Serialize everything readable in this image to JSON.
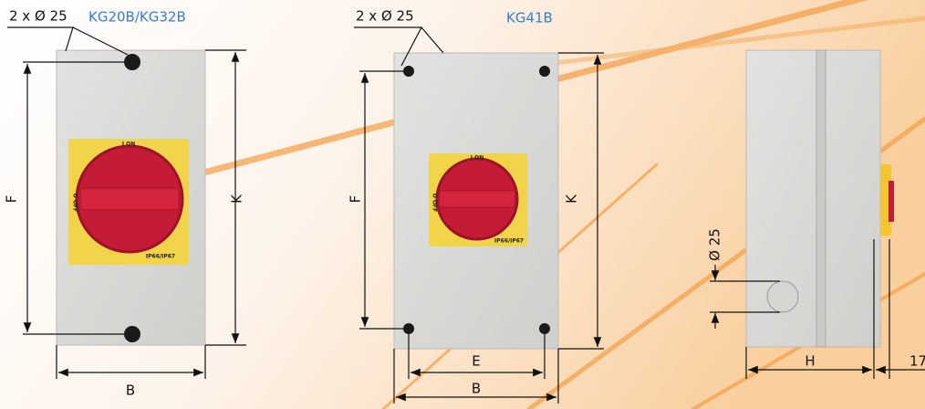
{
  "views": [
    {
      "hole_label": "2 x Ø 25",
      "model": "KG20B/KG32B",
      "height_label": "F",
      "total_height_label": "K",
      "width_label": "B",
      "switch": {
        "on": "I ON",
        "off": "O OFF",
        "rating": "IP66/IP67"
      }
    },
    {
      "hole_label": "2 x Ø 25",
      "model": "KG41B",
      "height_label": "F",
      "total_height_label": "K",
      "hole_spacing_label": "E",
      "width_label": "B",
      "switch": {
        "on": "I ON",
        "off": "O OFF",
        "rating": "IP66/IP67"
      }
    },
    {
      "hole_label": "Ø 25",
      "depth_label": "H",
      "handle_label": "17"
    }
  ]
}
